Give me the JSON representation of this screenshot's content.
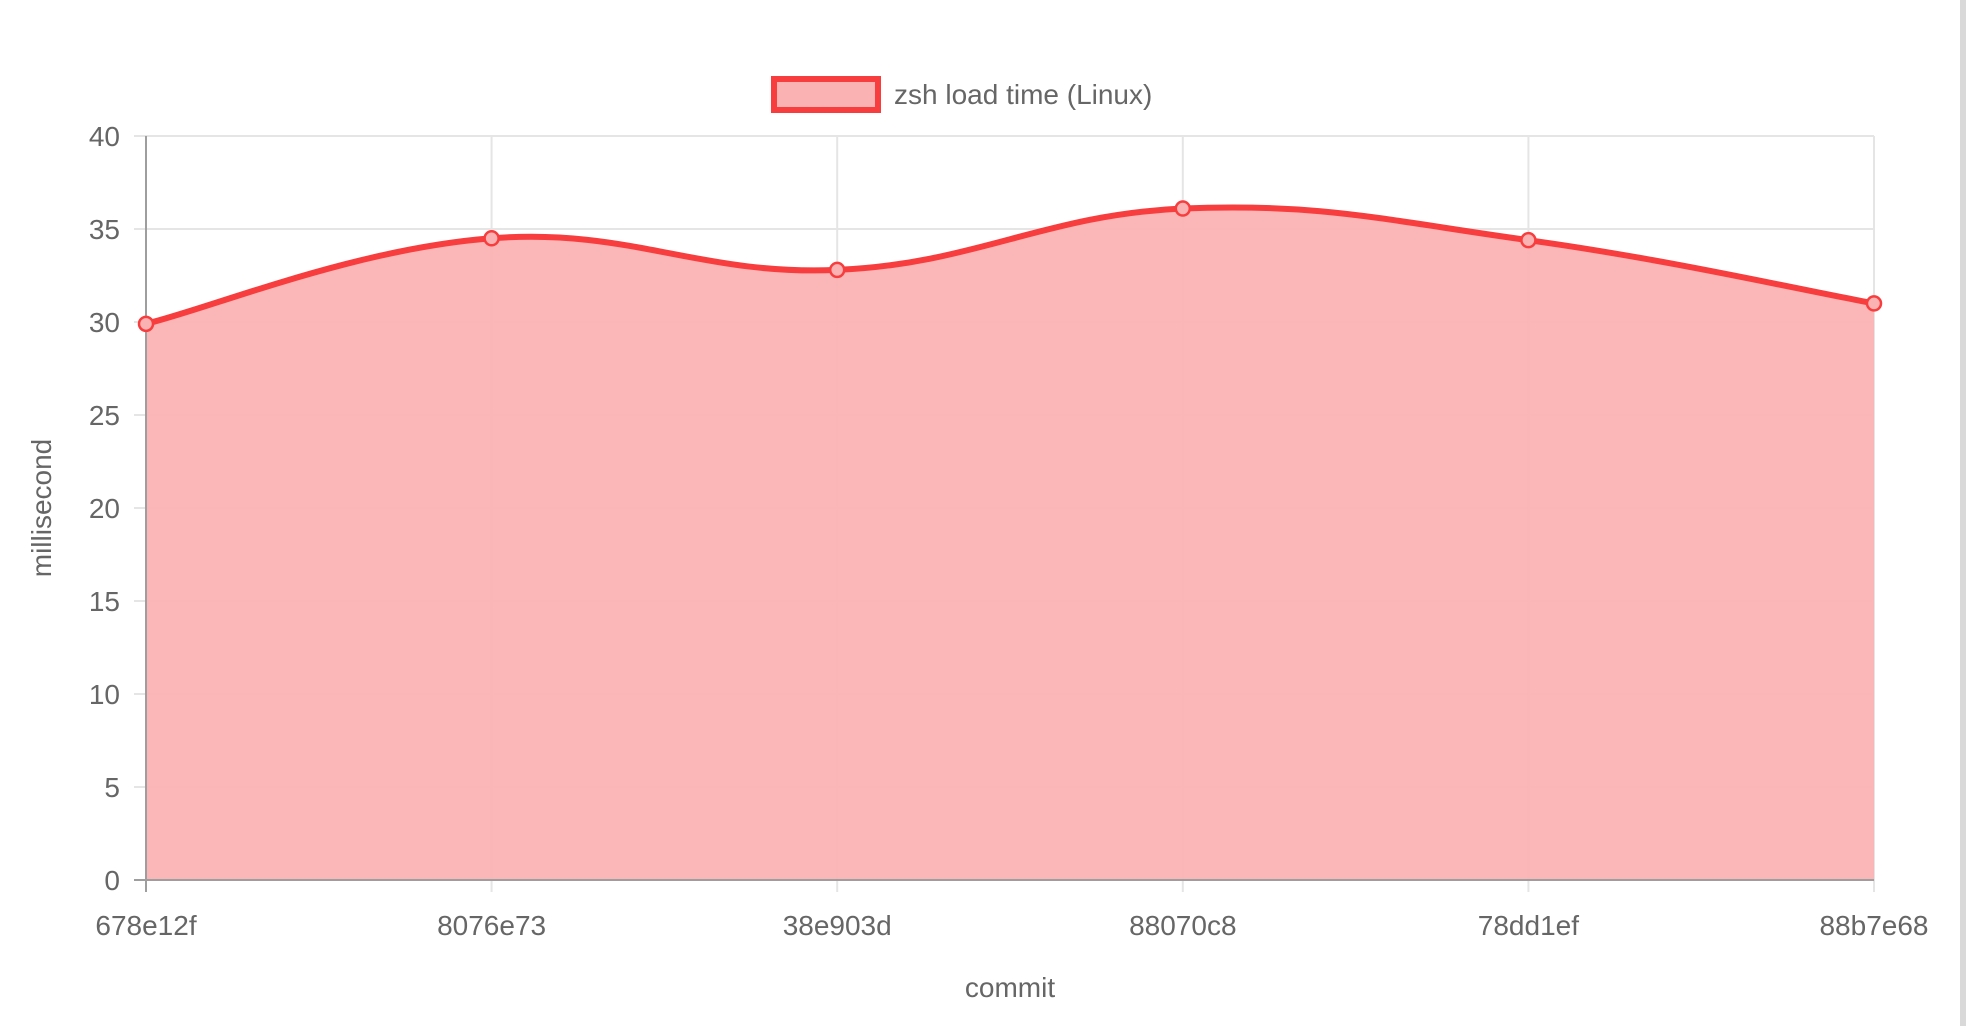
{
  "chart_data": {
    "type": "area",
    "categories": [
      "678e12f",
      "8076e73",
      "38e903d",
      "88070c8",
      "78dd1ef",
      "88b7e68"
    ],
    "series": [
      {
        "name": "zsh load time (Linux)",
        "values": [
          29.9,
          34.5,
          32.8,
          36.1,
          34.4,
          31.0
        ]
      }
    ],
    "xlabel": "commit",
    "ylabel": "millisecond",
    "ylim": [
      0,
      40
    ],
    "yticks": [
      "0",
      "5",
      "10",
      "15",
      "20",
      "25",
      "30",
      "35",
      "40"
    ],
    "grid": true,
    "legend": "top-center",
    "colors": {
      "line": "#f73d3d",
      "fill": "#fbb2b3",
      "grid": "#e5e5e5",
      "axis": "#9e9e9e",
      "text": "#666666"
    }
  }
}
